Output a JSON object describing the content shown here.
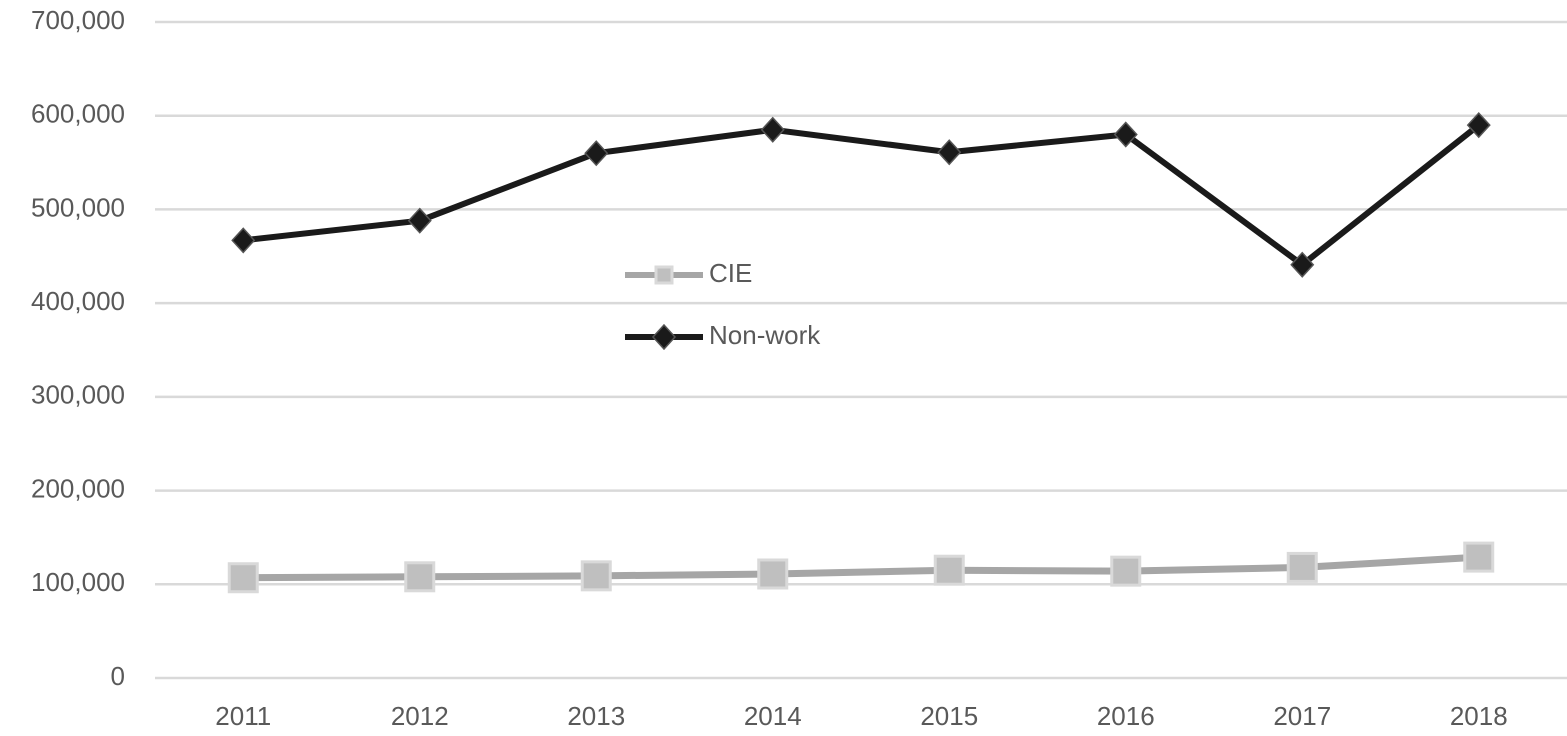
{
  "chart_data": {
    "type": "line",
    "categories": [
      "2011",
      "2012",
      "2013",
      "2014",
      "2015",
      "2016",
      "2017",
      "2018"
    ],
    "series": [
      {
        "name": "CIE",
        "color": "#a6a6a6",
        "marker": "square",
        "values": [
          107000,
          108000,
          109000,
          111000,
          115000,
          114000,
          118000,
          129000
        ]
      },
      {
        "name": "Non-work",
        "color": "#1a1a1a",
        "marker": "diamond",
        "values": [
          467000,
          488000,
          560000,
          585000,
          561000,
          580000,
          441000,
          590000
        ]
      }
    ],
    "ylim": [
      0,
      700000
    ],
    "yticks": [
      0,
      {
        "value": 100000,
        "label": "100,000"
      },
      {
        "value": 200000,
        "label": "200,000"
      },
      {
        "value": 300000,
        "label": "300,000"
      },
      {
        "value": 400000,
        "label": "400,000"
      },
      {
        "value": 500000,
        "label": "500,000"
      },
      {
        "value": 600000,
        "label": "600,000"
      },
      {
        "value": 700000,
        "label": "700,000"
      }
    ],
    "grid": true,
    "legend_position": "center"
  }
}
